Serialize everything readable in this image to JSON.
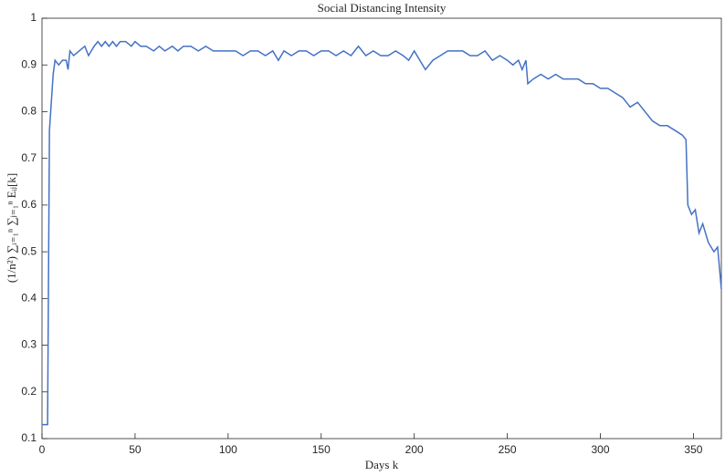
{
  "chart_data": {
    "type": "line",
    "title": "Social Distancing Intensity",
    "x_label": "Days k",
    "y_label": "(1/n²) ∑ᵢ₌₁ⁿ ∑ⱼ₌₁ⁿ Eᵢⱼ[k]",
    "xlim": [
      0,
      365
    ],
    "xticks": [
      0,
      50,
      100,
      150,
      200,
      250,
      300,
      350
    ],
    "ylim": [
      0.1,
      1
    ],
    "yticks": [
      0.1,
      0.2,
      0.3,
      0.4,
      0.5,
      0.6,
      0.7,
      0.8,
      0.9,
      1
    ],
    "grid": false,
    "series": [
      {
        "color": "#4472c4",
        "x": [
          0,
          3,
          4,
          6,
          7,
          9,
          11,
          13,
          14,
          15,
          17,
          20,
          23,
          25,
          28,
          30,
          32,
          34,
          36,
          38,
          40,
          42,
          45,
          48,
          50,
          53,
          56,
          60,
          63,
          66,
          70,
          73,
          76,
          80,
          84,
          88,
          92,
          96,
          100,
          104,
          108,
          112,
          116,
          120,
          124,
          127,
          130,
          134,
          138,
          142,
          146,
          150,
          154,
          158,
          162,
          166,
          170,
          174,
          178,
          182,
          186,
          190,
          194,
          197,
          200,
          203,
          206,
          210,
          214,
          218,
          222,
          226,
          230,
          234,
          238,
          242,
          246,
          250,
          253,
          256,
          258,
          260,
          261,
          264,
          268,
          272,
          276,
          280,
          284,
          288,
          292,
          296,
          300,
          304,
          308,
          312,
          316,
          320,
          324,
          328,
          332,
          336,
          340,
          344,
          346,
          347,
          349,
          351,
          353,
          355,
          358,
          361,
          363,
          365
        ],
        "values": [
          0.13,
          0.13,
          0.76,
          0.88,
          0.91,
          0.9,
          0.91,
          0.91,
          0.89,
          0.93,
          0.92,
          0.93,
          0.94,
          0.92,
          0.94,
          0.95,
          0.94,
          0.95,
          0.94,
          0.95,
          0.94,
          0.95,
          0.95,
          0.94,
          0.95,
          0.94,
          0.94,
          0.93,
          0.94,
          0.93,
          0.94,
          0.93,
          0.94,
          0.94,
          0.93,
          0.94,
          0.93,
          0.93,
          0.93,
          0.93,
          0.92,
          0.93,
          0.93,
          0.92,
          0.93,
          0.91,
          0.93,
          0.92,
          0.93,
          0.93,
          0.92,
          0.93,
          0.93,
          0.92,
          0.93,
          0.92,
          0.94,
          0.92,
          0.93,
          0.92,
          0.92,
          0.93,
          0.92,
          0.91,
          0.93,
          0.91,
          0.89,
          0.91,
          0.92,
          0.93,
          0.93,
          0.93,
          0.92,
          0.92,
          0.93,
          0.91,
          0.92,
          0.91,
          0.9,
          0.91,
          0.89,
          0.91,
          0.86,
          0.87,
          0.88,
          0.87,
          0.88,
          0.87,
          0.87,
          0.87,
          0.86,
          0.86,
          0.85,
          0.85,
          0.84,
          0.83,
          0.81,
          0.82,
          0.8,
          0.78,
          0.77,
          0.77,
          0.76,
          0.75,
          0.74,
          0.6,
          0.58,
          0.59,
          0.54,
          0.56,
          0.52,
          0.5,
          0.51,
          0.42
        ]
      }
    ]
  }
}
